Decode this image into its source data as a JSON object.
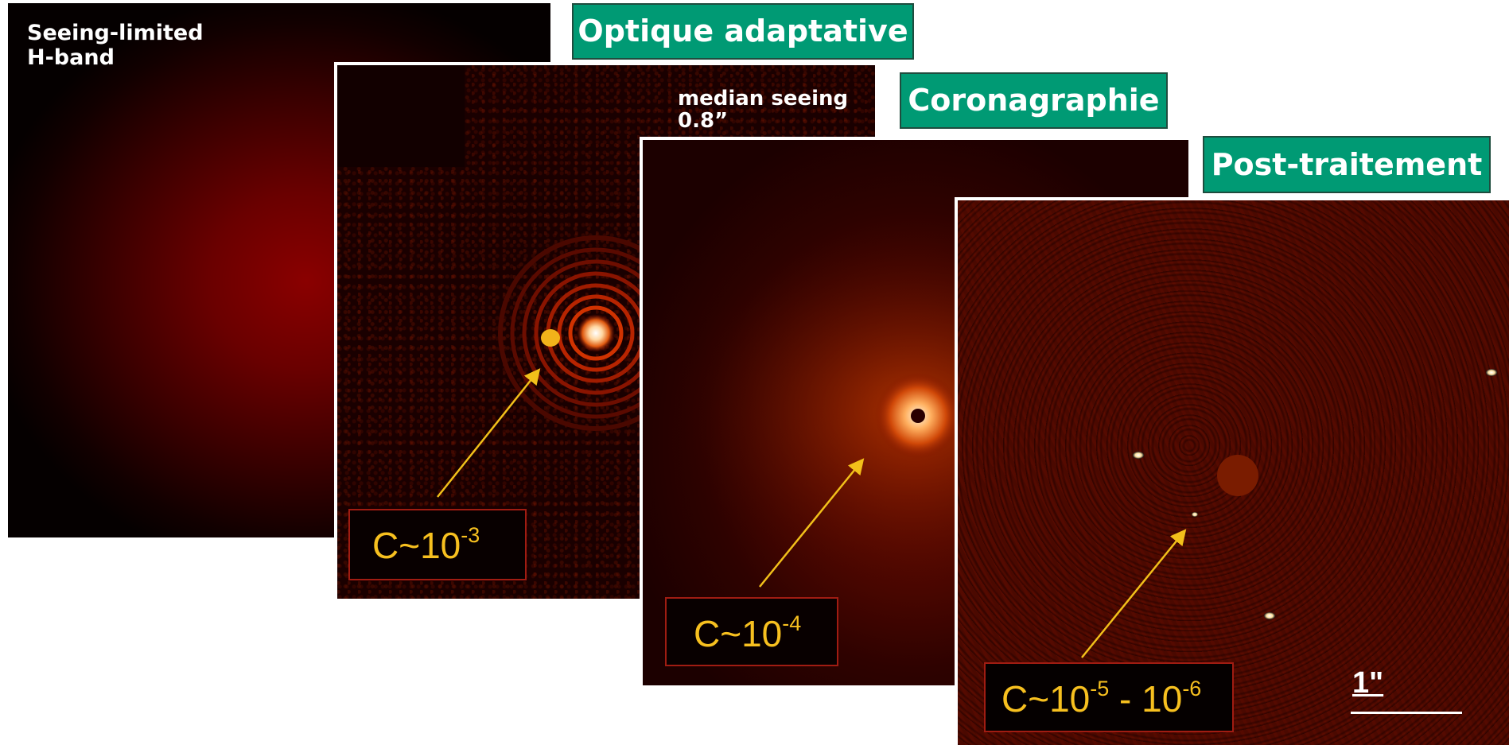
{
  "panels": {
    "seeing_limited": {
      "label_line1": "Seeing-limited",
      "label_line2": "H-band"
    },
    "adaptive_optics": {
      "seeing_line1": "median seeing",
      "seeing_line2": "0.8”",
      "contrast_base": "C~10",
      "contrast_exp": "-3"
    },
    "coronagraphy": {
      "contrast_base": "C~10",
      "contrast_exp": "-4"
    },
    "post_processing": {
      "contrast_base1": "C~10",
      "contrast_exp1": "-5",
      "contrast_sep": " - 10",
      "contrast_exp2": "-6",
      "scale_label": "1\""
    }
  },
  "tags": {
    "adaptive_optics": "Optique adaptative",
    "coronagraphy": "Coronagraphie",
    "post_processing": "Post-traitement"
  },
  "colors": {
    "tag_green": "#009a74",
    "contrast_yellow": "#f7c01f",
    "arrow_yellow": "#f2c01a",
    "box_border_red": "#a01c12"
  }
}
